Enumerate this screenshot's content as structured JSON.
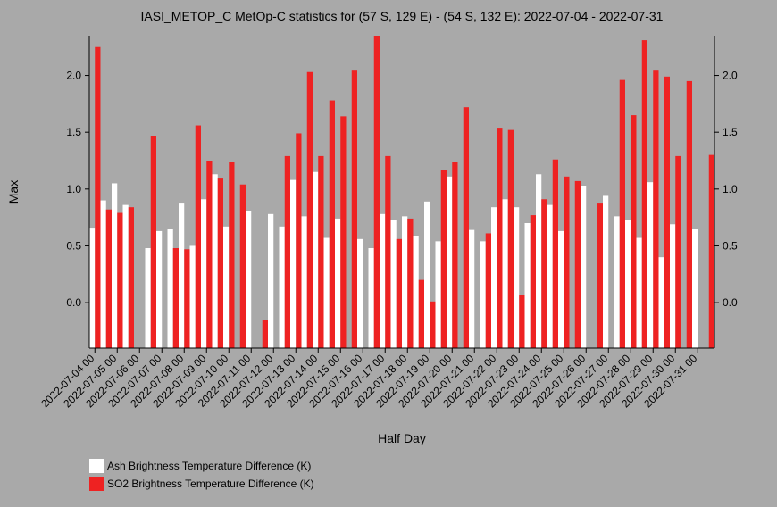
{
  "chart_data": {
    "type": "bar",
    "title": "IASI_METOP_C MetOp-C statistics for (57 S, 129 E) - (54 S, 132 E): 2022-07-04 - 2022-07-31",
    "xlabel": "Half Day",
    "ylabel": "Max",
    "ylim": [
      -0.4,
      2.35
    ],
    "yticks": [
      0.0,
      0.5,
      1.0,
      1.5,
      2.0
    ],
    "ytick_labels": [
      "0.0",
      "0.5",
      "1.0",
      "1.5",
      "2.0"
    ],
    "xtick_labels": [
      "2022-07-04 00",
      "2022-07-05 00",
      "2022-07-06 00",
      "2022-07-07 00",
      "2022-07-08 00",
      "2022-07-09 00",
      "2022-07-10 00",
      "2022-07-11 00",
      "2022-07-12 00",
      "2022-07-13 00",
      "2022-07-14 00",
      "2022-07-15 00",
      "2022-07-16 00",
      "2022-07-17 00",
      "2022-07-18 00",
      "2022-07-19 00",
      "2022-07-20 00",
      "2022-07-21 00",
      "2022-07-22 00",
      "2022-07-23 00",
      "2022-07-24 00",
      "2022-07-25 00",
      "2022-07-26 00",
      "2022-07-27 00",
      "2022-07-28 00",
      "2022-07-29 00",
      "2022-07-30 00",
      "2022-07-31 00"
    ],
    "categories": [
      "2022-07-04 00",
      "2022-07-04 12",
      "2022-07-05 00",
      "2022-07-05 12",
      "2022-07-06 00",
      "2022-07-06 12",
      "2022-07-07 00",
      "2022-07-07 12",
      "2022-07-08 00",
      "2022-07-08 12",
      "2022-07-09 00",
      "2022-07-09 12",
      "2022-07-10 00",
      "2022-07-10 12",
      "2022-07-11 00",
      "2022-07-11 12",
      "2022-07-12 00",
      "2022-07-12 12",
      "2022-07-13 00",
      "2022-07-13 12",
      "2022-07-14 00",
      "2022-07-14 12",
      "2022-07-15 00",
      "2022-07-15 12",
      "2022-07-16 00",
      "2022-07-16 12",
      "2022-07-17 00",
      "2022-07-17 12",
      "2022-07-18 00",
      "2022-07-18 12",
      "2022-07-19 00",
      "2022-07-19 12",
      "2022-07-20 00",
      "2022-07-20 12",
      "2022-07-21 00",
      "2022-07-21 12",
      "2022-07-22 00",
      "2022-07-22 12",
      "2022-07-23 00",
      "2022-07-23 12",
      "2022-07-24 00",
      "2022-07-24 12",
      "2022-07-25 00",
      "2022-07-25 12",
      "2022-07-26 00",
      "2022-07-26 12",
      "2022-07-27 00",
      "2022-07-27 12",
      "2022-07-28 00",
      "2022-07-28 12",
      "2022-07-29 00",
      "2022-07-29 12",
      "2022-07-30 00",
      "2022-07-30 12",
      "2022-07-31 00",
      "2022-07-31 12"
    ],
    "series": [
      {
        "name": "Ash Brightness Temperature Difference (K)",
        "color": "#ffffff",
        "values": [
          0.66,
          0.9,
          1.05,
          0.86,
          null,
          0.48,
          0.63,
          0.65,
          0.88,
          0.5,
          0.91,
          1.13,
          0.67,
          null,
          0.81,
          null,
          0.78,
          0.67,
          1.08,
          0.76,
          1.15,
          0.57,
          0.74,
          null,
          0.56,
          0.48,
          0.78,
          0.73,
          0.76,
          0.59,
          0.89,
          0.54,
          1.11,
          null,
          0.64,
          0.54,
          0.84,
          0.91,
          0.84,
          0.7,
          1.13,
          0.86,
          0.63,
          null,
          1.03,
          null,
          0.94,
          0.76,
          0.73,
          0.57,
          1.06,
          0.4,
          0.69,
          null,
          0.65,
          null
        ]
      },
      {
        "name": "SO2 Brightness Temperature Difference (K)",
        "color": "#ee2222",
        "values": [
          2.25,
          0.82,
          0.79,
          0.84,
          null,
          1.47,
          null,
          0.48,
          0.47,
          1.56,
          1.25,
          1.1,
          1.24,
          1.04,
          null,
          -0.15,
          null,
          1.29,
          1.49,
          2.03,
          1.29,
          1.78,
          1.64,
          2.05,
          null,
          2.35,
          1.29,
          0.56,
          0.74,
          0.2,
          0.01,
          1.17,
          1.24,
          1.72,
          null,
          0.61,
          1.54,
          1.52,
          0.07,
          0.77,
          0.91,
          1.26,
          1.11,
          1.07,
          null,
          0.88,
          null,
          1.96,
          1.65,
          2.31,
          2.05,
          1.99,
          1.29,
          1.95,
          null,
          1.3
        ]
      }
    ],
    "legend_position": "bottom-left",
    "grid": false
  }
}
